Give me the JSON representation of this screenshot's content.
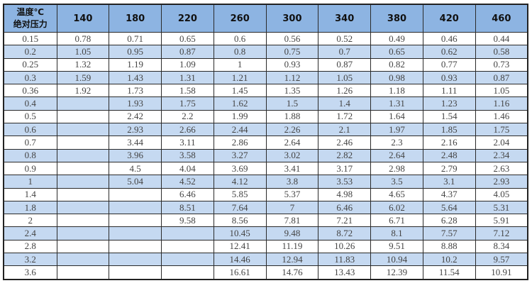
{
  "table": {
    "corner_top": "温度℃",
    "corner_bottom": "绝对压力",
    "header_color": "#8db4e2",
    "alt_row_color": "#c5d9f1",
    "columns": [
      "140",
      "180",
      "220",
      "260",
      "300",
      "340",
      "380",
      "420",
      "460"
    ],
    "rows": [
      [
        "0.15",
        "0.78",
        "0.71",
        "0.65",
        "0.6",
        "0.56",
        "0.52",
        "0.49",
        "0.46",
        "0.44"
      ],
      [
        "0.2",
        "1.05",
        "0.95",
        "0.87",
        "0.8",
        "0.75",
        "0.7",
        "0.65",
        "0.62",
        "0.58"
      ],
      [
        "0.25",
        "1.32",
        "1.19",
        "1.09",
        "1",
        "0.93",
        "0.87",
        "0.82",
        "0.77",
        "0.73"
      ],
      [
        "0.3",
        "1.59",
        "1.43",
        "1.31",
        "1.21",
        "1.12",
        "1.05",
        "0.98",
        "0.93",
        "0.87"
      ],
      [
        "0.36",
        "1.92",
        "1.73",
        "1.58",
        "1.45",
        "1.35",
        "1.26",
        "1.18",
        "1.11",
        "1.05"
      ],
      [
        "0.4",
        "",
        "1.93",
        "1.75",
        "1.62",
        "1.5",
        "1.4",
        "1.31",
        "1.23",
        "1.16"
      ],
      [
        "0.5",
        "",
        "2.42",
        "2.2",
        "1.99",
        "1.88",
        "1.72",
        "1.64",
        "1.54",
        "1.46"
      ],
      [
        "0.6",
        "",
        "2.93",
        "2.66",
        "2.44",
        "2.26",
        "2.1",
        "1.97",
        "1.85",
        "1.75"
      ],
      [
        "0.7",
        "",
        "3.44",
        "3.11",
        "2.86",
        "2.64",
        "2.46",
        "2.3",
        "2.16",
        "2.04"
      ],
      [
        "0.8",
        "",
        "3.96",
        "3.58",
        "3.27",
        "3.02",
        "2.82",
        "2.64",
        "2.48",
        "2.34"
      ],
      [
        "0.9",
        "",
        "4.5",
        "4.04",
        "3.69",
        "3.41",
        "3.17",
        "2.98",
        "2.79",
        "2.63"
      ],
      [
        "1",
        "",
        "5.04",
        "4.52",
        "4.12",
        "3.8",
        "3.53",
        "3.5",
        "3.1",
        "2.93"
      ],
      [
        "1.4",
        "",
        "",
        "6.46",
        "5.85",
        "5.37",
        "4.98",
        "4.65",
        "4.37",
        "4.05"
      ],
      [
        "1.8",
        "",
        "",
        "8.51",
        "7.64",
        "7",
        "6.46",
        "6.02",
        "5.64",
        "5.31"
      ],
      [
        "2",
        "",
        "",
        "9.58",
        "8.56",
        "7.81",
        "7.21",
        "6.71",
        "6.28",
        "5.91"
      ],
      [
        "2.4",
        "",
        "",
        "",
        "10.45",
        "9.48",
        "8.72",
        "8.1",
        "7.57",
        "7.12"
      ],
      [
        "2.8",
        "",
        "",
        "",
        "12.41",
        "11.19",
        "10.26",
        "9.51",
        "8.88",
        "8.34"
      ],
      [
        "3.2",
        "",
        "",
        "",
        "14.46",
        "12.94",
        "11.83",
        "10.94",
        "10.2",
        "9.57"
      ],
      [
        "3.6",
        "",
        "",
        "",
        "16.61",
        "14.76",
        "13.43",
        "12.39",
        "11.54",
        "10.91"
      ]
    ]
  }
}
